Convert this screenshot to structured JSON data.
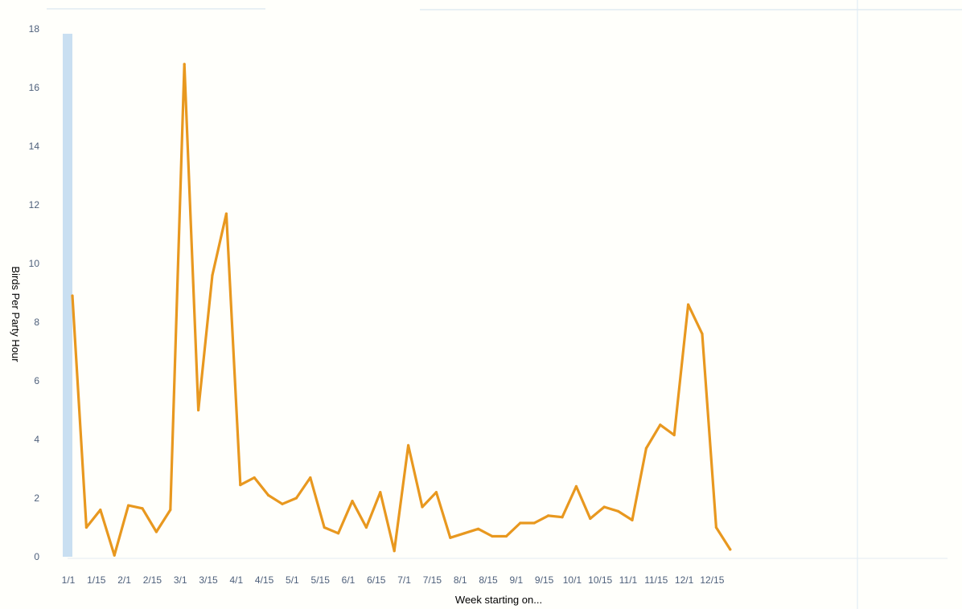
{
  "chart_data": {
    "type": "line",
    "title": "",
    "xlabel": "Week starting on...",
    "ylabel": "Birds Per Party Hour",
    "ylim": [
      0,
      18
    ],
    "yticks": [
      0,
      2,
      4,
      6,
      8,
      10,
      12,
      14,
      16,
      18
    ],
    "x_tick_labels": [
      "1/1",
      "1/15",
      "2/1",
      "2/15",
      "3/1",
      "3/15",
      "4/1",
      "4/15",
      "5/1",
      "5/15",
      "6/1",
      "6/15",
      "7/1",
      "7/15",
      "8/1",
      "8/15",
      "9/1",
      "9/15",
      "10/1",
      "10/15",
      "11/1",
      "11/15",
      "12/1",
      "12/15"
    ],
    "points_per_label": 2,
    "grid": false,
    "legend": "none",
    "line_color": "#e8981f",
    "text_color": "#4d5f7a",
    "axis_band_color": "#c9dff1",
    "series": [
      {
        "values": [
          8.9,
          1.0,
          1.6,
          0.05,
          1.75,
          1.65,
          0.85,
          1.6,
          16.8,
          5.0,
          9.6,
          11.7,
          2.45,
          2.7,
          2.1,
          1.8,
          2.0,
          2.7,
          1.0,
          0.8,
          1.9,
          1.0,
          2.2,
          0.2,
          3.8,
          1.7,
          2.2,
          0.65,
          0.8,
          0.95,
          0.7,
          0.7,
          1.15,
          1.15,
          1.4,
          1.35,
          2.4,
          1.3,
          1.7,
          1.55,
          1.25,
          3.7,
          4.5,
          4.15,
          8.6,
          7.6,
          1.0,
          0.25
        ]
      }
    ]
  }
}
